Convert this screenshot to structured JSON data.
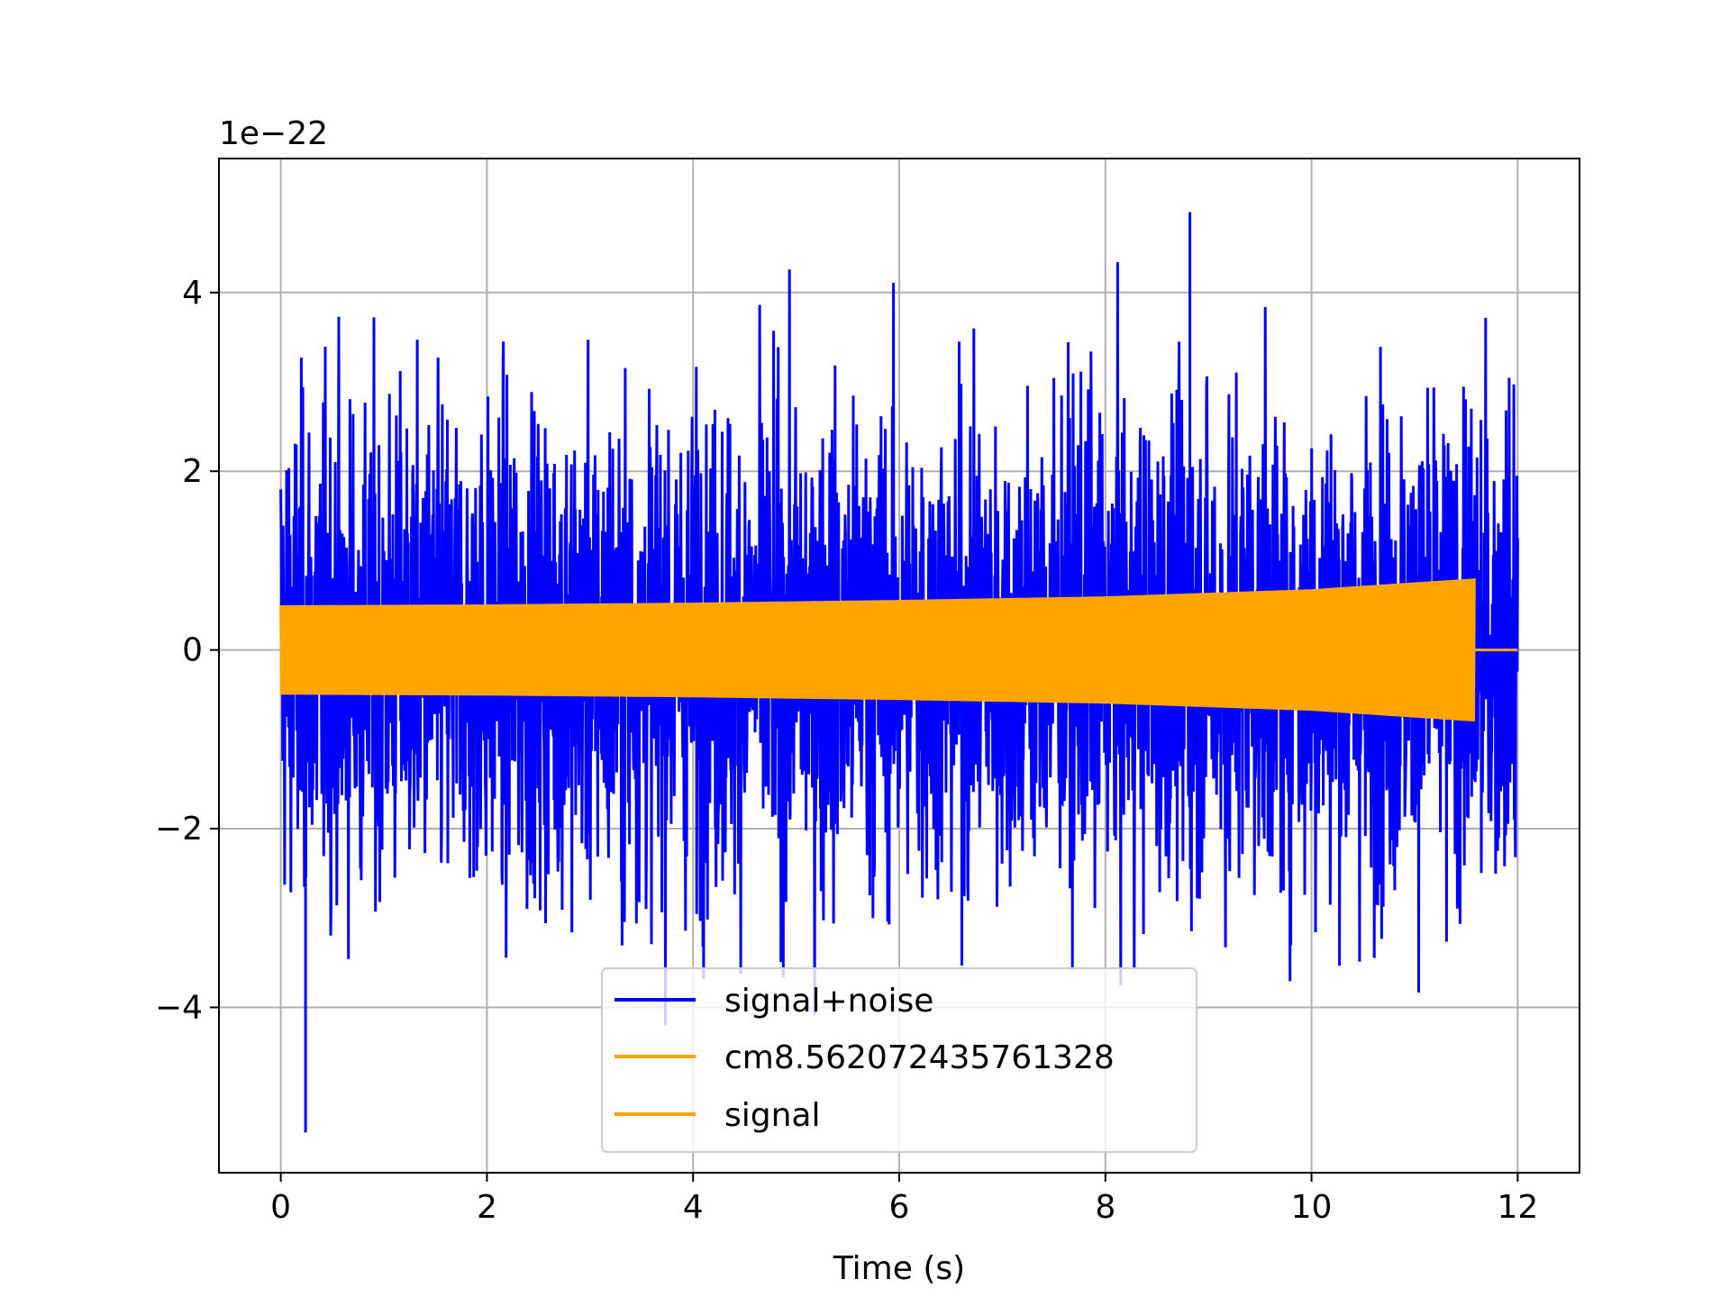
{
  "chart_data": {
    "type": "line",
    "xlabel": "Time (s)",
    "ylabel": "",
    "y_scale_label": "1e−22",
    "xlim": [
      -0.6,
      12.6
    ],
    "ylim": [
      -5.85,
      5.5
    ],
    "x_ticks": [
      0,
      2,
      4,
      6,
      8,
      10,
      12
    ],
    "x_tick_labels": [
      "0",
      "2",
      "4",
      "6",
      "8",
      "10",
      "12"
    ],
    "y_ticks": [
      -4,
      -2,
      0,
      2,
      4
    ],
    "y_tick_labels": [
      "−4",
      "−2",
      "0",
      "2",
      "4"
    ],
    "grid": true,
    "legend_position": "bottom-center",
    "series": [
      {
        "name": "signal+noise",
        "color": "#0000ff",
        "x_range": [
          0,
          12
        ],
        "description_values": {
          "typical_amplitude": 1.5,
          "max": 4.9,
          "min": -5.4,
          "max_at_time": 8.82,
          "min_at_time": 0.24
        }
      },
      {
        "name": "cm8.562072435761328",
        "color": "#ffa500",
        "x_range": [
          0,
          11.58
        ],
        "envelope": [
          [
            0,
            0.5
          ],
          [
            2,
            0.51
          ],
          [
            4,
            0.53
          ],
          [
            6,
            0.56
          ],
          [
            8,
            0.6
          ],
          [
            10,
            0.68
          ],
          [
            11.58,
            0.8
          ]
        ],
        "after": [
          [
            11.58,
            0
          ],
          [
            12,
            0
          ]
        ]
      },
      {
        "name": "signal",
        "color": "#ffa500",
        "x_range": [
          0,
          11.58
        ],
        "envelope": [
          [
            0,
            0.5
          ],
          [
            2,
            0.51
          ],
          [
            4,
            0.53
          ],
          [
            6,
            0.56
          ],
          [
            8,
            0.6
          ],
          [
            10,
            0.68
          ],
          [
            11.58,
            0.8
          ]
        ],
        "after": [
          [
            11.58,
            0
          ],
          [
            12,
            0
          ]
        ]
      }
    ]
  }
}
